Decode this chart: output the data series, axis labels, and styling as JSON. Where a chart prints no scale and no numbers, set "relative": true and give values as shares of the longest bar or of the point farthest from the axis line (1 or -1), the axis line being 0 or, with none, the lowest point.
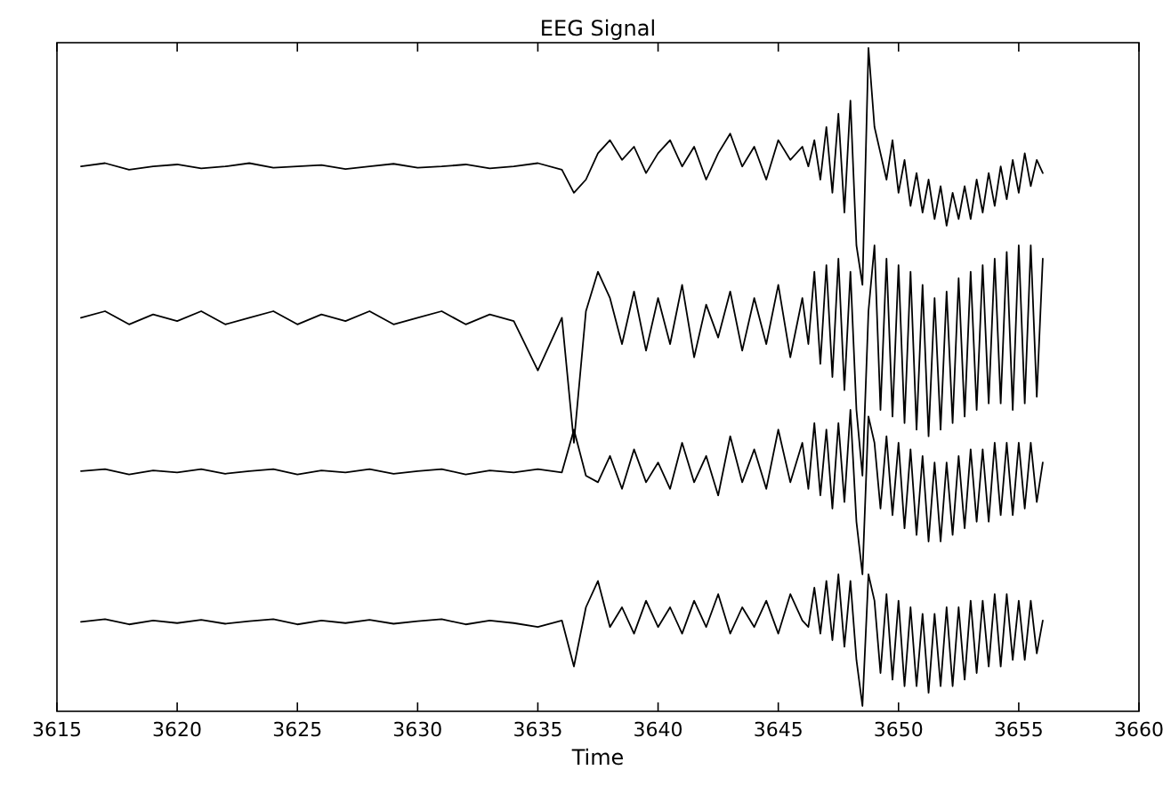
{
  "chart_data": {
    "type": "line",
    "title": "EEG Signal",
    "xlabel": "Time",
    "relative": true,
    "xlim": [
      3615,
      3660
    ],
    "xticks": [
      3615,
      3620,
      3625,
      3630,
      3635,
      3640,
      3645,
      3650,
      3655,
      3660
    ],
    "x": [
      3616,
      3617,
      3618,
      3619,
      3620,
      3621,
      3622,
      3623,
      3624,
      3625,
      3626,
      3627,
      3628,
      3629,
      3630,
      3631,
      3632,
      3633,
      3634,
      3635,
      3636,
      3636.5,
      3637,
      3637.5,
      3638,
      3638.5,
      3639,
      3639.5,
      3640,
      3640.5,
      3641,
      3641.5,
      3642,
      3642.5,
      3643,
      3643.5,
      3644,
      3644.5,
      3645,
      3645.5,
      3646,
      3646.25,
      3646.5,
      3646.75,
      3647,
      3647.25,
      3647.5,
      3647.75,
      3648,
      3648.25,
      3648.5,
      3648.75,
      3649,
      3649.25,
      3649.5,
      3649.75,
      3650,
      3650.25,
      3650.5,
      3650.75,
      3651,
      3651.25,
      3651.5,
      3651.75,
      3652,
      3652.25,
      3652.5,
      3652.75,
      3653,
      3653.25,
      3653.5,
      3653.75,
      3654,
      3654.25,
      3654.5,
      3654.75,
      3655,
      3655.25,
      3655.5,
      3655.75,
      3656
    ],
    "series": [
      {
        "color": "#000000",
        "values": [
          0.82,
          0.825,
          0.815,
          0.82,
          0.823,
          0.817,
          0.82,
          0.825,
          0.818,
          0.82,
          0.822,
          0.816,
          0.82,
          0.824,
          0.818,
          0.82,
          0.823,
          0.817,
          0.82,
          0.825,
          0.815,
          0.78,
          0.8,
          0.84,
          0.86,
          0.83,
          0.85,
          0.81,
          0.84,
          0.86,
          0.82,
          0.85,
          0.8,
          0.84,
          0.87,
          0.82,
          0.85,
          0.8,
          0.86,
          0.83,
          0.85,
          0.82,
          0.86,
          0.8,
          0.88,
          0.78,
          0.9,
          0.75,
          0.92,
          0.7,
          0.64,
          1.0,
          0.88,
          0.84,
          0.8,
          0.86,
          0.78,
          0.83,
          0.76,
          0.81,
          0.75,
          0.8,
          0.74,
          0.79,
          0.73,
          0.78,
          0.74,
          0.79,
          0.74,
          0.8,
          0.75,
          0.81,
          0.76,
          0.82,
          0.77,
          0.83,
          0.78,
          0.84,
          0.79,
          0.83,
          0.81
        ]
      },
      {
        "color": "#000000",
        "values": [
          0.59,
          0.6,
          0.58,
          0.595,
          0.585,
          0.6,
          0.58,
          0.59,
          0.6,
          0.58,
          0.595,
          0.585,
          0.6,
          0.58,
          0.59,
          0.6,
          0.58,
          0.595,
          0.585,
          0.51,
          0.59,
          0.4,
          0.6,
          0.66,
          0.62,
          0.55,
          0.63,
          0.54,
          0.62,
          0.55,
          0.64,
          0.53,
          0.61,
          0.56,
          0.63,
          0.54,
          0.62,
          0.55,
          0.64,
          0.53,
          0.62,
          0.55,
          0.66,
          0.52,
          0.67,
          0.5,
          0.68,
          0.48,
          0.66,
          0.45,
          0.35,
          0.6,
          0.7,
          0.45,
          0.68,
          0.44,
          0.67,
          0.43,
          0.66,
          0.42,
          0.64,
          0.41,
          0.62,
          0.42,
          0.63,
          0.43,
          0.65,
          0.44,
          0.66,
          0.45,
          0.67,
          0.46,
          0.68,
          0.46,
          0.69,
          0.45,
          0.7,
          0.46,
          0.7,
          0.47,
          0.68
        ]
      },
      {
        "color": "#000000",
        "values": [
          0.357,
          0.36,
          0.352,
          0.358,
          0.355,
          0.36,
          0.353,
          0.357,
          0.36,
          0.352,
          0.358,
          0.355,
          0.36,
          0.353,
          0.357,
          0.36,
          0.352,
          0.358,
          0.355,
          0.36,
          0.355,
          0.42,
          0.35,
          0.34,
          0.38,
          0.33,
          0.39,
          0.34,
          0.37,
          0.33,
          0.4,
          0.34,
          0.38,
          0.32,
          0.41,
          0.34,
          0.39,
          0.33,
          0.42,
          0.34,
          0.4,
          0.33,
          0.43,
          0.32,
          0.42,
          0.3,
          0.43,
          0.31,
          0.45,
          0.28,
          0.2,
          0.44,
          0.4,
          0.3,
          0.41,
          0.29,
          0.4,
          0.27,
          0.39,
          0.26,
          0.38,
          0.25,
          0.37,
          0.25,
          0.37,
          0.26,
          0.38,
          0.27,
          0.39,
          0.28,
          0.39,
          0.28,
          0.4,
          0.29,
          0.4,
          0.29,
          0.4,
          0.3,
          0.4,
          0.31,
          0.37
        ]
      },
      {
        "color": "#000000",
        "values": [
          0.128,
          0.132,
          0.124,
          0.13,
          0.126,
          0.131,
          0.125,
          0.129,
          0.132,
          0.124,
          0.13,
          0.126,
          0.131,
          0.125,
          0.129,
          0.132,
          0.124,
          0.13,
          0.126,
          0.12,
          0.13,
          0.06,
          0.15,
          0.19,
          0.12,
          0.15,
          0.11,
          0.16,
          0.12,
          0.15,
          0.11,
          0.16,
          0.12,
          0.17,
          0.11,
          0.15,
          0.12,
          0.16,
          0.11,
          0.17,
          0.13,
          0.12,
          0.18,
          0.11,
          0.19,
          0.1,
          0.2,
          0.09,
          0.19,
          0.07,
          0.0,
          0.2,
          0.16,
          0.05,
          0.17,
          0.04,
          0.16,
          0.03,
          0.15,
          0.03,
          0.14,
          0.02,
          0.14,
          0.03,
          0.15,
          0.03,
          0.15,
          0.04,
          0.16,
          0.05,
          0.16,
          0.06,
          0.17,
          0.06,
          0.17,
          0.07,
          0.16,
          0.07,
          0.16,
          0.08,
          0.13
        ]
      }
    ]
  }
}
